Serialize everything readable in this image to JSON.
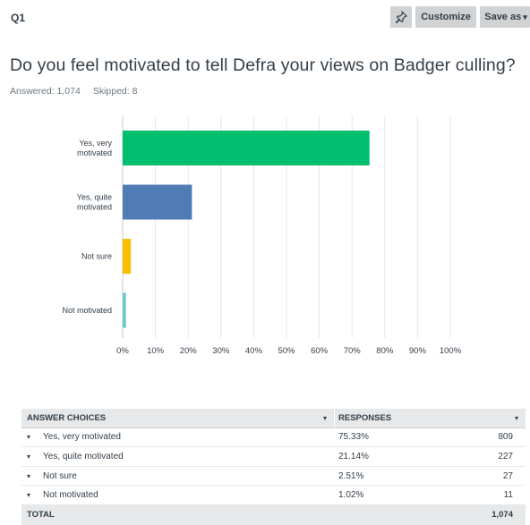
{
  "header": {
    "question_number": "Q1",
    "pin_icon": "pin-icon",
    "customize_label": "Customize",
    "save_label": "Save as",
    "save_caret": "▾"
  },
  "question": {
    "title": "Do you feel motivated to tell Defra your views on Badger culling?",
    "answered": "Answered: 1,074",
    "skipped": "Skipped: 8"
  },
  "chart_data": {
    "type": "bar",
    "orientation": "horizontal",
    "categories": [
      [
        "Yes, very",
        "motivated"
      ],
      [
        "Yes, quite",
        "motivated"
      ],
      [
        "Not sure"
      ],
      [
        "Not motivated"
      ]
    ],
    "values": [
      75.33,
      21.14,
      2.51,
      1.02
    ],
    "colors": [
      "#00bf6f",
      "#507cb6",
      "#f9be00",
      "#6bc8cd"
    ],
    "xlim": [
      0,
      100
    ],
    "xticks": [
      "0%",
      "10%",
      "20%",
      "30%",
      "40%",
      "50%",
      "60%",
      "70%",
      "80%",
      "90%",
      "100%"
    ],
    "grid": true
  },
  "table": {
    "headers": {
      "choices": "ANSWER CHOICES",
      "responses": "RESPONSES",
      "caret": "▾"
    },
    "row_caret": "▾",
    "rows": [
      {
        "choice": "Yes, very motivated",
        "percent": "75.33%",
        "count": "809"
      },
      {
        "choice": "Yes, quite motivated",
        "percent": "21.14%",
        "count": "227"
      },
      {
        "choice": "Not sure",
        "percent": "2.51%",
        "count": "27"
      },
      {
        "choice": "Not motivated",
        "percent": "1.02%",
        "count": "11"
      }
    ],
    "total": {
      "label": "TOTAL",
      "count": "1,074"
    }
  }
}
